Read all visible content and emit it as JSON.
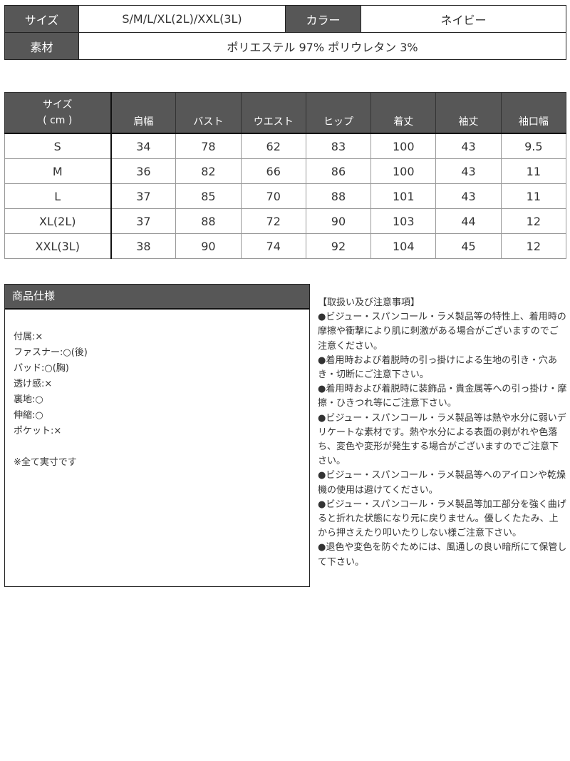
{
  "product_info": {
    "size_label": "サイズ",
    "size_value": "S/M/L/XL(2L)/XXL(3L)",
    "color_label": "カラー",
    "color_value": "ネイビー",
    "material_label": "素材",
    "material_value": "ポリエステル 97% ポリウレタン 3%"
  },
  "size_table": {
    "header_line1": "サイズ",
    "header_line2": "( cm )",
    "columns": [
      "肩幅",
      "バスト",
      "ウエスト",
      "ヒップ",
      "着丈",
      "袖丈",
      "袖口幅"
    ],
    "rows": [
      {
        "size": "S",
        "values": [
          "34",
          "78",
          "62",
          "83",
          "100",
          "43",
          "9.5"
        ]
      },
      {
        "size": "M",
        "values": [
          "36",
          "82",
          "66",
          "86",
          "100",
          "43",
          "11"
        ]
      },
      {
        "size": "L",
        "values": [
          "37",
          "85",
          "70",
          "88",
          "101",
          "43",
          "11"
        ]
      },
      {
        "size": "XL(2L)",
        "values": [
          "37",
          "88",
          "72",
          "90",
          "103",
          "44",
          "12"
        ]
      },
      {
        "size": "XXL(3L)",
        "values": [
          "38",
          "90",
          "74",
          "92",
          "104",
          "45",
          "12"
        ]
      }
    ]
  },
  "spec": {
    "title": "商品仕様",
    "items": [
      "付属:×",
      "ファスナー:○(後)",
      "パッド:○(胸)",
      "透け感:×",
      "裏地:○",
      "伸縮:○",
      "ポケット:×"
    ],
    "note": "※全て実寸です"
  },
  "care": {
    "title": "【取扱い及び注意事項】",
    "items": [
      "●ビジュー・スパンコール・ラメ製品等の特性上、着用時の摩擦や衝撃により肌に刺激がある場合がございますのでご注意ください。",
      "●着用時および着脱時の引っ掛けによる生地の引き・穴あき・切断にご注意下さい。",
      "●着用時および着脱時に装飾品・貴金属等への引っ掛け・摩擦・ひきつれ等にご注意下さい。",
      "●ビジュー・スパンコール・ラメ製品等は熱や水分に弱いデリケートな素材です。熱や水分による表面の剥がれや色落ち、変色や変形が発生する場合がございますのでご注意下さい。",
      "●ビジュー・スパンコール・ラメ製品等へのアイロンや乾燥機の使用は避けてください。",
      "●ビジュー・スパンコール・ラメ製品等加工部分を強く曲げると折れた状態になり元に戻りません。優しくたたみ、上から押さえたり叩いたりしない様ご注意下さい。",
      "●退色や変色を防ぐためには、風通しの良い暗所にて保管して下さい。"
    ]
  }
}
